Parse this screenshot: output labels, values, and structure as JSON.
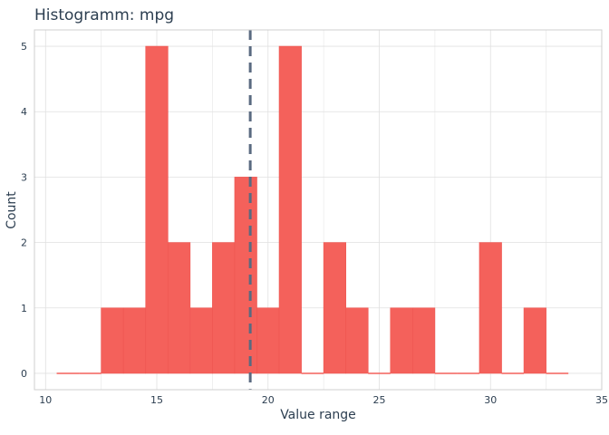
{
  "chart_data": {
    "type": "histogram",
    "title": "Histogramm: mpg",
    "xlabel": "Value range",
    "ylabel": "Count",
    "xlim": [
      9.5,
      35
    ],
    "ylim": [
      -0.25,
      5.25
    ],
    "x_ticks": [
      10,
      15,
      20,
      25,
      30,
      35
    ],
    "y_ticks": [
      0,
      1,
      2,
      3,
      4,
      5
    ],
    "grid": true,
    "bin_width": 1,
    "bins": [
      {
        "start": 10.5,
        "end": 11.5,
        "count": 0
      },
      {
        "start": 11.5,
        "end": 12.5,
        "count": 0
      },
      {
        "start": 12.5,
        "end": 13.5,
        "count": 1
      },
      {
        "start": 13.5,
        "end": 14.5,
        "count": 1
      },
      {
        "start": 14.5,
        "end": 15.5,
        "count": 5
      },
      {
        "start": 15.5,
        "end": 16.5,
        "count": 2
      },
      {
        "start": 16.5,
        "end": 17.5,
        "count": 1
      },
      {
        "start": 17.5,
        "end": 18.5,
        "count": 2
      },
      {
        "start": 18.5,
        "end": 19.5,
        "count": 3
      },
      {
        "start": 19.5,
        "end": 20.5,
        "count": 1
      },
      {
        "start": 20.5,
        "end": 21.5,
        "count": 5
      },
      {
        "start": 21.5,
        "end": 22.5,
        "count": 0
      },
      {
        "start": 22.5,
        "end": 23.5,
        "count": 2
      },
      {
        "start": 23.5,
        "end": 24.5,
        "count": 1
      },
      {
        "start": 24.5,
        "end": 25.5,
        "count": 0
      },
      {
        "start": 25.5,
        "end": 26.5,
        "count": 1
      },
      {
        "start": 26.5,
        "end": 27.5,
        "count": 1
      },
      {
        "start": 27.5,
        "end": 28.5,
        "count": 0
      },
      {
        "start": 28.5,
        "end": 29.5,
        "count": 0
      },
      {
        "start": 29.5,
        "end": 30.5,
        "count": 2
      },
      {
        "start": 30.5,
        "end": 31.5,
        "count": 0
      },
      {
        "start": 31.5,
        "end": 32.5,
        "count": 1
      },
      {
        "start": 32.5,
        "end": 33.5,
        "count": 0
      }
    ],
    "mean_line": {
      "x": 19.2,
      "style": "dashed"
    },
    "colors": {
      "bar": "#f4615b",
      "mean_line": "#5a6a80",
      "text": "#2c3e50"
    }
  }
}
